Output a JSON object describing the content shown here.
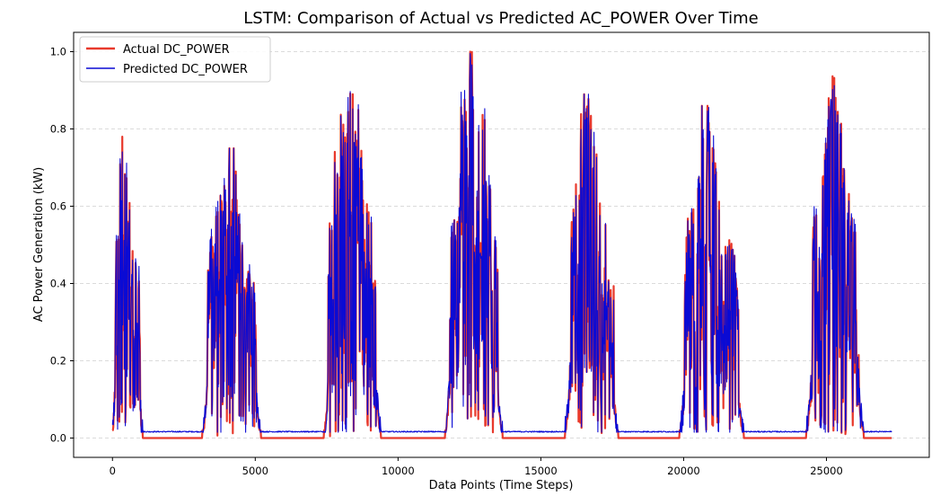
{
  "chart_data": {
    "type": "line",
    "title": "LSTM: Comparison of Actual vs Predicted AC_POWER Over Time",
    "xlabel": "Data Points (Time Steps)",
    "ylabel": "AC Power Generation (kW)",
    "xlim": [
      -1360,
      28600
    ],
    "ylim": [
      -0.05,
      1.05
    ],
    "xticks": [
      0,
      5000,
      10000,
      15000,
      20000,
      25000
    ],
    "yticks": [
      0.0,
      0.2,
      0.4,
      0.6,
      0.8,
      1.0
    ],
    "xtick_labels": [
      "0",
      "5000",
      "10000",
      "15000",
      "20000",
      "25000"
    ],
    "ytick_labels": [
      "0.0",
      "0.2",
      "0.4",
      "0.6",
      "0.8",
      "1.0"
    ],
    "grid": "horizontal-dashed",
    "legend_position": "top-left",
    "n_points": 27300,
    "days": [
      {
        "start": 0,
        "peak": 350,
        "end": 1050,
        "max": 0.78
      },
      {
        "start": 3150,
        "peak": 4050,
        "end": 5200,
        "max": 0.75
      },
      {
        "start": 7400,
        "peak": 8300,
        "end": 9400,
        "max": 0.95
      },
      {
        "start": 11650,
        "peak": 12600,
        "end": 13650,
        "max": 1.0
      },
      {
        "start": 15850,
        "peak": 16600,
        "end": 17700,
        "max": 0.89
      },
      {
        "start": 19850,
        "peak": 20900,
        "end": 22100,
        "max": 0.86
      },
      {
        "start": 24300,
        "peak": 25250,
        "end": 26300,
        "max": 0.96
      }
    ],
    "series": [
      {
        "name": "Actual DC_POWER",
        "color": "#e8392c",
        "night_level": 0.0
      },
      {
        "name": "Predicted DC_POWER",
        "color": "#0a0ad4",
        "night_level": 0.015
      }
    ]
  }
}
